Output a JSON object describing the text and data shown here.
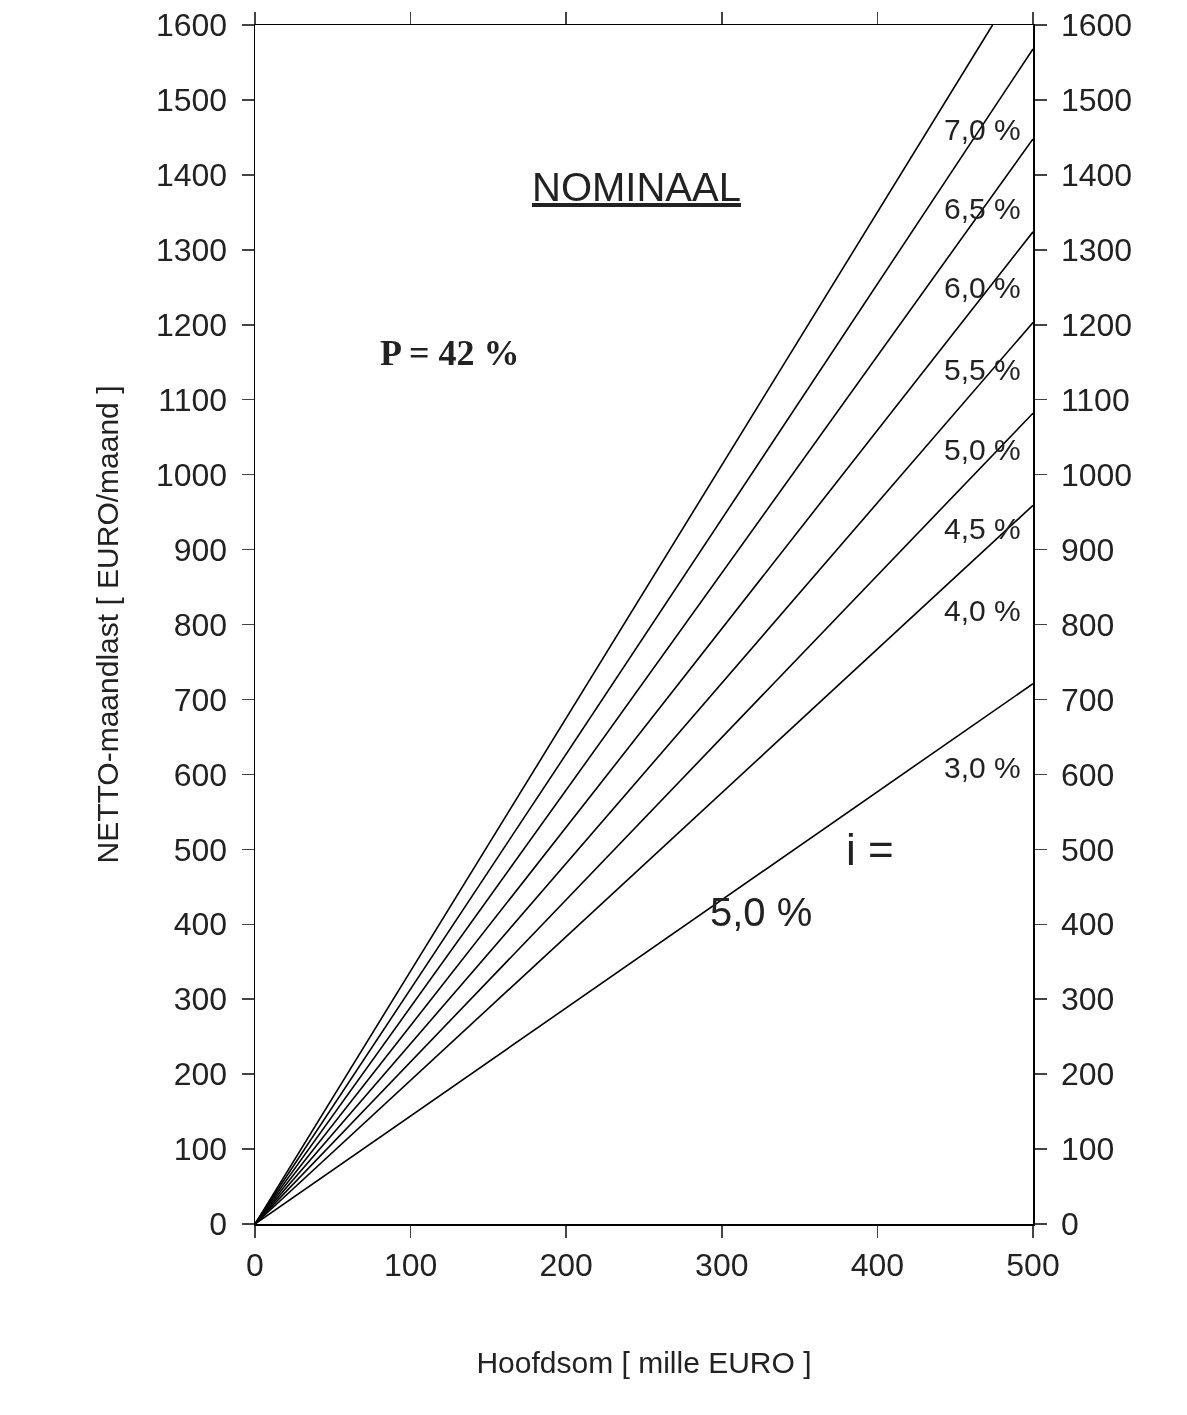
{
  "chart_data": {
    "type": "line",
    "xlabel": "Hoofdsom [ mille EURO ]",
    "ylabel": "NETTO-maandlast [ EURO/maand ]",
    "xlim": [
      0,
      500
    ],
    "xticks": [
      0,
      100,
      200,
      300,
      400,
      500
    ],
    "ylim": [
      0,
      1600
    ],
    "yticks": [
      0,
      100,
      200,
      300,
      400,
      500,
      600,
      700,
      800,
      900,
      1000,
      1100,
      1200,
      1300,
      1400,
      1500,
      1600
    ],
    "y2lim": [
      0,
      1600
    ],
    "y2ticks": [
      0,
      100,
      200,
      300,
      400,
      500,
      600,
      700,
      800,
      900,
      1000,
      1100,
      1200,
      1300,
      1400,
      1500,
      1600
    ],
    "grid": false,
    "legend": false,
    "marker": "none",
    "line_style": "solid",
    "series": [
      {
        "name": "7,0 %",
        "color": "#000000",
        "x": [
          0,
          474
        ],
        "values": [
          0,
          1600
        ]
      },
      {
        "name": "6,5 %",
        "color": "#000000",
        "x": [
          0,
          500
        ],
        "values": [
          0,
          1568
        ]
      },
      {
        "name": "6,0 %",
        "color": "#000000",
        "x": [
          0,
          500
        ],
        "values": [
          0,
          1448
        ]
      },
      {
        "name": "5,5 %",
        "color": "#000000",
        "x": [
          0,
          500
        ],
        "values": [
          0,
          1324
        ]
      },
      {
        "name": "5,0 %",
        "color": "#000000",
        "x": [
          0,
          500
        ],
        "values": [
          0,
          1203
        ]
      },
      {
        "name": "4,5 %",
        "color": "#000000",
        "x": [
          0,
          500
        ],
        "values": [
          0,
          1082
        ]
      },
      {
        "name": "4,0 %",
        "color": "#000000",
        "x": [
          0,
          500
        ],
        "values": [
          0,
          959
        ]
      },
      {
        "name": "3,0 %",
        "color": "#000000",
        "x": [
          0,
          500
        ],
        "values": [
          0,
          721
        ]
      }
    ],
    "annotations": [
      "NOMINAAL",
      "P = 42 %",
      "i =",
      "5,0 %"
    ]
  }
}
